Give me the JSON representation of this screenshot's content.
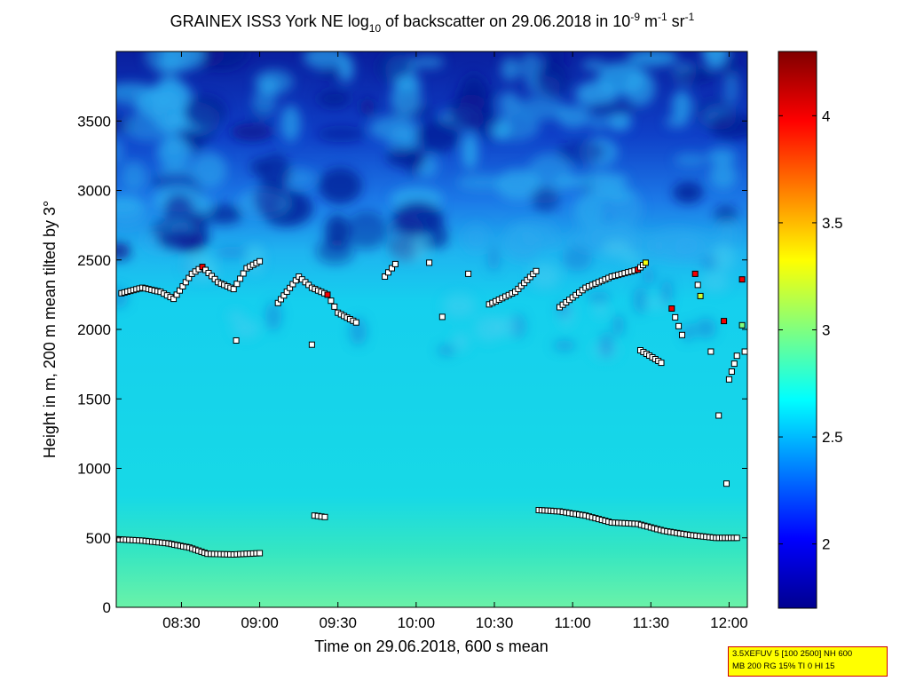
{
  "chart_data": {
    "type": "heatmap",
    "title": {
      "part1": "GRAINEX ISS3 York NE log",
      "sub1": "10",
      "part2": " of backscatter on 29.06.2018 in 10",
      "sup1": "-9",
      "part3": " m",
      "sup2": "-1",
      "part4": " sr",
      "sup3": "-1"
    },
    "xlabel": "Time on 29.06.2018, 600 s mean",
    "ylabel": "Height in m, 200 m mean tilted by 3°",
    "x_axis": {
      "start_time": "08:05",
      "end_time": "12:07",
      "ticks": [
        "08:30",
        "09:00",
        "09:30",
        "10:00",
        "10:30",
        "11:00",
        "11:30",
        "12:00"
      ]
    },
    "y_axis": {
      "range": [
        0,
        4000
      ],
      "ticks": [
        0,
        500,
        1000,
        1500,
        2000,
        2500,
        3000,
        3500
      ]
    },
    "colorbar": {
      "range": [
        1.7,
        4.3
      ],
      "ticks": [
        2,
        2.5,
        3,
        3.5,
        4
      ],
      "colormap": "jet"
    },
    "grid": false,
    "series": [
      {
        "marker": "square",
        "points": [
          [
            "08:05",
            490,
            2.8
          ],
          [
            "08:15",
            480,
            2.8
          ],
          [
            "08:25",
            460,
            2.8
          ],
          [
            "08:33",
            430,
            2.8
          ],
          [
            "08:40",
            385,
            2.8
          ],
          [
            "08:50",
            380,
            2.8
          ],
          [
            "09:00",
            390,
            2.8
          ],
          [
            "09:21",
            660,
            2.8
          ],
          [
            "09:25",
            650,
            2.8
          ],
          [
            "10:47",
            700,
            2.8
          ],
          [
            "10:55",
            690,
            2.8
          ],
          [
            "11:05",
            660,
            2.8
          ],
          [
            "11:15",
            610,
            2.8
          ],
          [
            "11:25",
            600,
            2.8
          ],
          [
            "11:35",
            550,
            2.8
          ],
          [
            "11:45",
            520,
            2.8
          ],
          [
            "11:55",
            500,
            2.8
          ],
          [
            "12:03",
            500,
            2.8
          ],
          [
            "08:07",
            2260,
            2.8
          ],
          [
            "08:15",
            2300,
            2.8
          ],
          [
            "08:22",
            2270,
            2.8
          ],
          [
            "08:27",
            2220,
            2.8
          ],
          [
            "08:34",
            2400,
            2.8
          ],
          [
            "08:38",
            2450,
            4.0
          ],
          [
            "08:44",
            2340,
            2.8
          ],
          [
            "08:50",
            2290,
            2.8
          ],
          [
            "08:55",
            2440,
            2.8
          ],
          [
            "09:00",
            2490,
            2.8
          ],
          [
            "09:07",
            2190,
            2.8
          ],
          [
            "09:15",
            2380,
            2.8
          ],
          [
            "09:20",
            2300,
            2.8
          ],
          [
            "09:26",
            2250,
            4.0
          ],
          [
            "09:30",
            2120,
            2.8
          ],
          [
            "09:37",
            2050,
            2.8
          ],
          [
            "08:51",
            1920,
            2.8
          ],
          [
            "09:20",
            1890,
            2.8
          ],
          [
            "09:48",
            2380,
            2.8
          ],
          [
            "09:52",
            2470,
            2.8
          ],
          [
            "10:05",
            2480,
            2.8
          ],
          [
            "10:10",
            2090,
            2.8
          ],
          [
            "10:20",
            2400,
            2.8
          ],
          [
            "10:28",
            2180,
            2.8
          ],
          [
            "10:38",
            2270,
            2.8
          ],
          [
            "10:46",
            2420,
            2.8
          ],
          [
            "10:55",
            2160,
            2.8
          ],
          [
            "11:05",
            2300,
            2.8
          ],
          [
            "11:15",
            2380,
            2.8
          ],
          [
            "11:25",
            2430,
            4.0
          ],
          [
            "11:28",
            2480,
            3.3
          ],
          [
            "11:26",
            1850,
            2.8
          ],
          [
            "11:34",
            1760,
            2.8
          ],
          [
            "11:38",
            2150,
            4.0
          ],
          [
            "11:42",
            1960,
            2.8
          ],
          [
            "11:47",
            2400,
            4.0
          ],
          [
            "11:49",
            2240,
            3.2
          ],
          [
            "11:53",
            1840,
            2.8
          ],
          [
            "11:58",
            2060,
            4.0
          ],
          [
            "12:00",
            1640,
            2.8
          ],
          [
            "12:03",
            1810,
            2.8
          ],
          [
            "12:05",
            2030,
            3.0
          ],
          [
            "12:05",
            2360,
            4.0
          ],
          [
            "12:06",
            1840,
            2.8
          ],
          [
            "11:56",
            1380,
            2.8
          ],
          [
            "11:59",
            890,
            2.8
          ]
        ]
      }
    ]
  },
  "info_box": {
    "line1": "3.5XEFUV 5 [100 2500] NH 600",
    "line2": "MB 200 RG 15% TI 0 HI 15"
  }
}
